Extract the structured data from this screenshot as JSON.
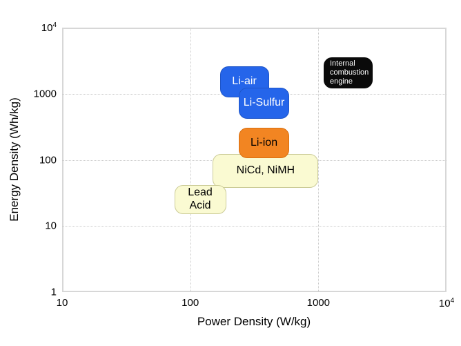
{
  "figure": {
    "background_color": "#ffffff",
    "frame_color": "#d7d7d7",
    "gridline_color": "#c9c9c9"
  },
  "chart_data": {
    "type": "scatter",
    "variant": "ragone-plot-labeled-regions",
    "title": "",
    "xlabel": "Power Density (W/kg)",
    "ylabel": "Energy Density (Wh/kg)",
    "x_scale": "log",
    "y_scale": "log",
    "xlim": [
      10,
      10000
    ],
    "ylim": [
      1,
      10000
    ],
    "grid": "dotted at major decades",
    "legend": "none",
    "x_ticks": [
      {
        "value": 10,
        "label": "10",
        "gridline": false
      },
      {
        "value": 100,
        "label": "100",
        "gridline": true
      },
      {
        "value": 1000,
        "label": "1000",
        "gridline": true
      },
      {
        "value": 10000,
        "label": "10⁴",
        "gridline": false
      }
    ],
    "y_ticks": [
      {
        "value": 1,
        "label": "1",
        "gridline": false
      },
      {
        "value": 10,
        "label": "10",
        "gridline": true
      },
      {
        "value": 100,
        "label": "100",
        "gridline": true
      },
      {
        "value": 1000,
        "label": "1000",
        "gridline": true
      },
      {
        "value": 10000,
        "label": "10⁴",
        "gridline": false
      }
    ],
    "regions": [
      {
        "id": "nicd-nimh",
        "label_lines": [
          "NiCd, NiMH"
        ],
        "power_range_w_per_kg": [
          150,
          1000
        ],
        "energy_range_wh_per_kg": [
          38,
          123
        ],
        "fill": "#fafad2",
        "border": "#cbcb97",
        "text_color": "#000000",
        "font_px": 16,
        "align": "center"
      },
      {
        "id": "lead-acid",
        "label_lines": [
          "Lead",
          "Acid"
        ],
        "power_range_w_per_kg": [
          75,
          190
        ],
        "energy_range_wh_per_kg": [
          15,
          42
        ],
        "fill": "#fafad2",
        "border": "#cbcb97",
        "text_color": "#000000",
        "font_px": 16,
        "align": "center"
      },
      {
        "id": "li-ion",
        "label_lines": [
          "Li-ion"
        ],
        "power_range_w_per_kg": [
          240,
          590
        ],
        "energy_range_wh_per_kg": [
          105,
          305
        ],
        "fill": "#f28522",
        "border": "#d86e0e",
        "text_color": "#000000",
        "font_px": 16,
        "align": "center"
      },
      {
        "id": "li-air",
        "label_lines": [
          "Li-air"
        ],
        "power_range_w_per_kg": [
          170,
          410
        ],
        "energy_range_wh_per_kg": [
          880,
          2600
        ],
        "fill": "#2565ea",
        "border": "#1e55c8",
        "text_color": "#ffffff",
        "font_px": 16,
        "align": "center"
      },
      {
        "id": "li-sulfur",
        "label_lines": [
          "Li-Sulfur"
        ],
        "power_range_w_per_kg": [
          240,
          590
        ],
        "energy_range_wh_per_kg": [
          420,
          1230
        ],
        "fill": "#2565ea",
        "border": "#1e55c8",
        "text_color": "#ffffff",
        "font_px": 16,
        "align": "center"
      },
      {
        "id": "internal-combustion-engine",
        "label_lines": [
          "Internal",
          "combustion",
          "engine"
        ],
        "power_range_w_per_kg": [
          1100,
          2650
        ],
        "energy_range_wh_per_kg": [
          1200,
          3550
        ],
        "fill": "#0a0a0a",
        "border": "#0a0a0a",
        "text_color": "#ffffff",
        "font_px": 11,
        "align": "left"
      }
    ]
  }
}
